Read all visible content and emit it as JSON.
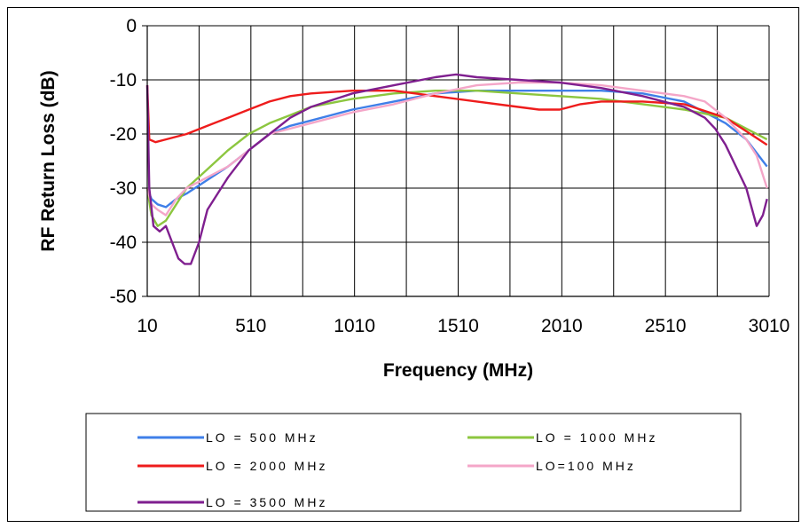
{
  "chart_data": {
    "type": "line",
    "title": "",
    "xlabel": "Frequency (MHz)",
    "ylabel": "RF Return Loss (dB)",
    "xlim": [
      10,
      3010
    ],
    "ylim": [
      -50,
      0
    ],
    "x_ticks": [
      "10",
      "510",
      "1010",
      "1510",
      "2010",
      "2510",
      "3010"
    ],
    "y_ticks": [
      "0",
      "-10",
      "-20",
      "-30",
      "-40",
      "-50"
    ],
    "grid": true,
    "legend_position": "bottom",
    "series": [
      {
        "name": "LO = 500 MHz",
        "color": "#3f7fe8",
        "x": [
          10,
          30,
          60,
          100,
          150,
          200,
          300,
          400,
          500,
          600,
          700,
          800,
          1000,
          1200,
          1400,
          1600,
          1800,
          2000,
          2200,
          2400,
          2600,
          2800,
          2900,
          3000
        ],
        "y": [
          -30,
          -32,
          -33,
          -33.5,
          -32,
          -31,
          -28.5,
          -26,
          -23,
          -20,
          -18.5,
          -17.5,
          -15.5,
          -14,
          -12.5,
          -12,
          -12,
          -12,
          -12,
          -12.5,
          -14,
          -18,
          -21,
          -26
        ]
      },
      {
        "name": "LO = 1000 MHz",
        "color": "#8cc63f",
        "x": [
          10,
          30,
          60,
          100,
          150,
          200,
          300,
          400,
          500,
          600,
          700,
          800,
          1000,
          1200,
          1400,
          1600,
          1800,
          2000,
          2200,
          2400,
          2600,
          2800,
          2900,
          3000
        ],
        "y": [
          -30,
          -35,
          -37,
          -36,
          -33,
          -30,
          -26.5,
          -23,
          -20,
          -18,
          -16.5,
          -15,
          -13.5,
          -12.5,
          -12,
          -12,
          -12.5,
          -13,
          -13.5,
          -14.5,
          -15.5,
          -17,
          -19,
          -21
        ]
      },
      {
        "name": "LO = 2000 MHz",
        "color": "#ee1c1c",
        "x": [
          10,
          20,
          50,
          100,
          200,
          300,
          400,
          500,
          600,
          700,
          800,
          1000,
          1200,
          1400,
          1600,
          1800,
          1900,
          2000,
          2100,
          2200,
          2400,
          2600,
          2800,
          2900,
          3000
        ],
        "y": [
          -11,
          -21,
          -21.5,
          -21,
          -20,
          -18.5,
          -17,
          -15.5,
          -14,
          -13,
          -12.5,
          -12,
          -12,
          -13,
          -14,
          -15,
          -15.5,
          -15.5,
          -14.5,
          -14,
          -14,
          -14.5,
          -17,
          -19.5,
          -22
        ]
      },
      {
        "name": "LO=100 MHz",
        "color": "#f4a6c8",
        "x": [
          10,
          30,
          60,
          100,
          150,
          200,
          300,
          400,
          500,
          600,
          700,
          800,
          1000,
          1200,
          1400,
          1600,
          1800,
          2000,
          2200,
          2400,
          2600,
          2700,
          2800,
          2900,
          2950,
          3000
        ],
        "y": [
          -30,
          -33,
          -34,
          -35,
          -32,
          -30,
          -28,
          -26,
          -23,
          -20,
          -19,
          -18,
          -16,
          -14.5,
          -12.5,
          -11,
          -10.5,
          -10.5,
          -11,
          -12,
          -13,
          -14,
          -17,
          -21,
          -24,
          -30
        ]
      },
      {
        "name": "LO = 3500 MHz",
        "color": "#7f1f8f",
        "x": [
          10,
          20,
          40,
          70,
          100,
          130,
          160,
          190,
          220,
          260,
          300,
          350,
          400,
          500,
          600,
          700,
          800,
          1000,
          1200,
          1400,
          1500,
          1600,
          1800,
          2000,
          2200,
          2400,
          2600,
          2700,
          2750,
          2800,
          2850,
          2900,
          2950,
          2980,
          3000
        ],
        "y": [
          -11,
          -30,
          -37,
          -38,
          -37,
          -40,
          -43,
          -44,
          -44,
          -40,
          -34,
          -31,
          -28,
          -23,
          -20,
          -17,
          -15,
          -12.5,
          -11,
          -9.5,
          -9,
          -9.5,
          -10,
          -10.5,
          -11.5,
          -13,
          -15,
          -17,
          -19,
          -22,
          -26,
          -30,
          -37,
          -35,
          -32
        ]
      }
    ]
  }
}
